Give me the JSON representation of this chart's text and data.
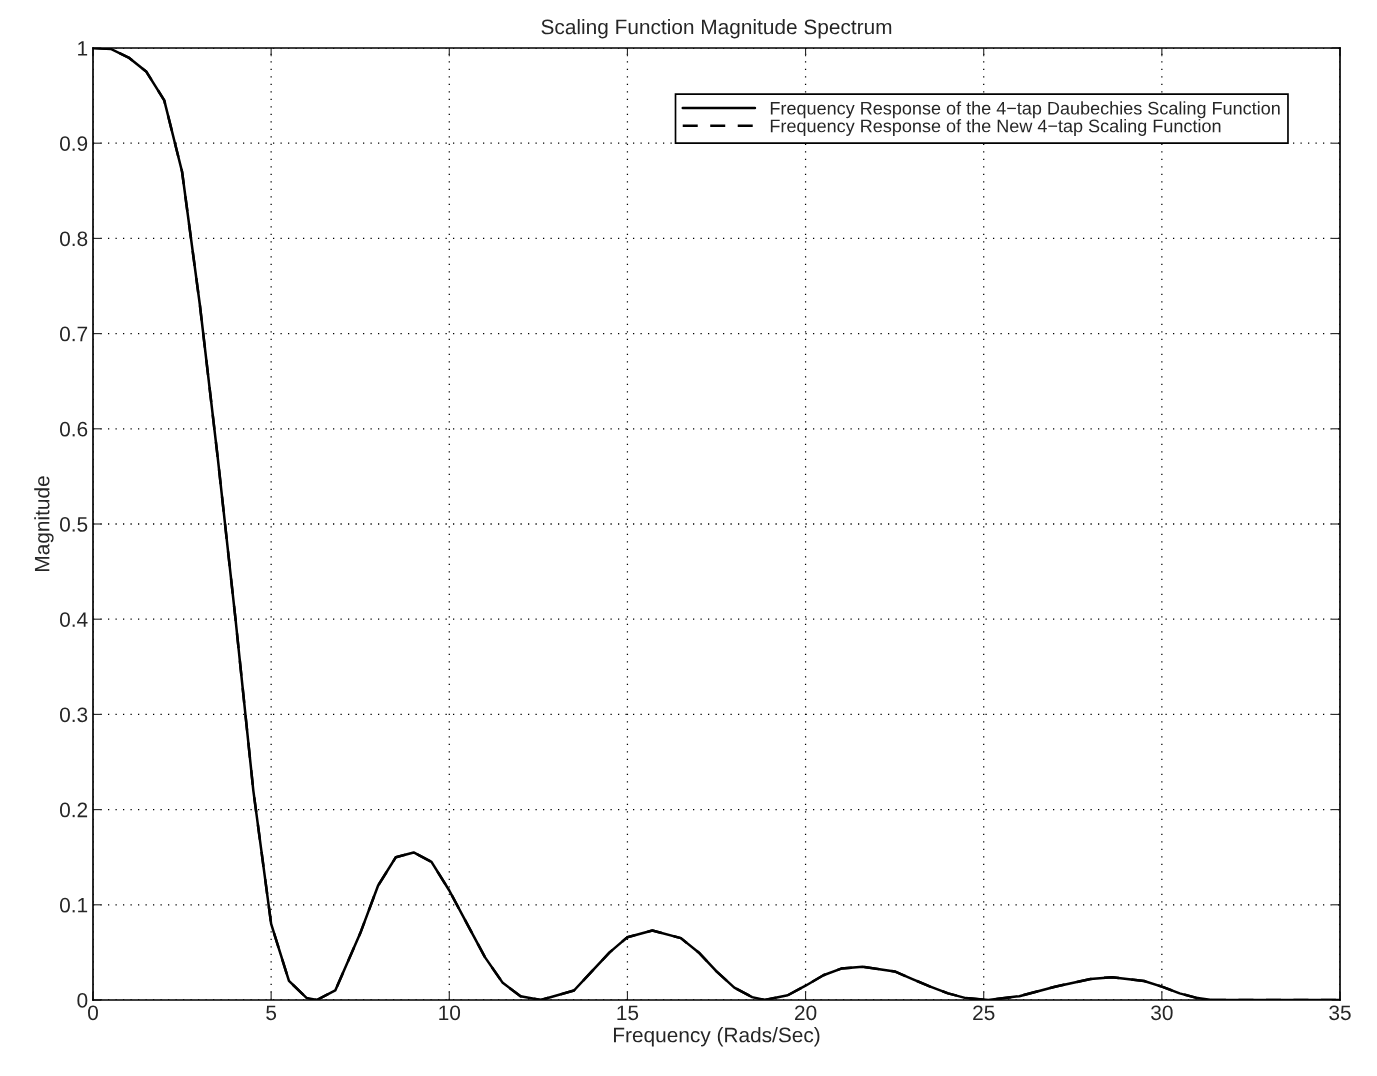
{
  "chart_data": {
    "type": "line",
    "title": "Scaling Function Magnitude Spectrum",
    "xlabel": "Frequency (Rads/Sec)",
    "ylabel": "Magnitude",
    "x": [
      0,
      0.5,
      1,
      1.5,
      2,
      2.5,
      3,
      3.5,
      4,
      4.5,
      5,
      5.5,
      6,
      6.28,
      6.8,
      7.5,
      8,
      8.5,
      9,
      9.5,
      10,
      10.5,
      11,
      11.5,
      12,
      12.57,
      13.5,
      14,
      14.5,
      15,
      15.7,
      16.5,
      17,
      17.5,
      18,
      18.5,
      18.85,
      19.5,
      20,
      20.5,
      21,
      21.6,
      22.5,
      23,
      23.5,
      24,
      24.5,
      25.13,
      26,
      27,
      28,
      28.6,
      29.5,
      30,
      30.5,
      31,
      31.4,
      32,
      35
    ],
    "series": [
      {
        "name": "Frequency Response of the 4−tap Daubechies Scaling Function",
        "color": "#000000",
        "line_style": "solid",
        "values": [
          1,
          0.999,
          0.99,
          0.975,
          0.945,
          0.87,
          0.73,
          0.57,
          0.4,
          0.22,
          0.08,
          0.02,
          0.002,
          0,
          0.01,
          0.07,
          0.12,
          0.15,
          0.155,
          0.145,
          0.115,
          0.08,
          0.045,
          0.018,
          0.004,
          0,
          0.01,
          0.03,
          0.05,
          0.066,
          0.073,
          0.065,
          0.05,
          0.03,
          0.013,
          0.003,
          0,
          0.005,
          0.015,
          0.026,
          0.033,
          0.035,
          0.03,
          0.022,
          0.014,
          0.007,
          0.002,
          0,
          0.004,
          0.014,
          0.022,
          0.024,
          0.02,
          0.014,
          0.007,
          0.002,
          0,
          0,
          0
        ]
      },
      {
        "name": "Frequency Response of the New 4−tap Scaling Function",
        "color": "#000000",
        "line_style": "dashed",
        "values": [
          1,
          0.999,
          0.99,
          0.975,
          0.945,
          0.87,
          0.73,
          0.57,
          0.4,
          0.22,
          0.08,
          0.02,
          0.002,
          0,
          0.01,
          0.07,
          0.12,
          0.15,
          0.155,
          0.145,
          0.115,
          0.08,
          0.045,
          0.018,
          0.004,
          0,
          0.01,
          0.03,
          0.05,
          0.066,
          0.073,
          0.065,
          0.05,
          0.03,
          0.013,
          0.003,
          0,
          0.005,
          0.015,
          0.026,
          0.033,
          0.035,
          0.03,
          0.022,
          0.014,
          0.007,
          0.002,
          0,
          0.004,
          0.014,
          0.022,
          0.024,
          0.02,
          0.014,
          0.007,
          0.002,
          0,
          0,
          0
        ]
      }
    ],
    "xlim": [
      0,
      35
    ],
    "xticks": [
      0,
      5,
      10,
      15,
      20,
      25,
      30,
      35
    ],
    "ylim": [
      0,
      1
    ],
    "yticks": [
      0,
      0.1,
      0.2,
      0.3,
      0.4,
      0.5,
      0.6,
      0.7,
      0.8,
      0.9,
      1
    ],
    "grid": true,
    "legend": "top right"
  }
}
